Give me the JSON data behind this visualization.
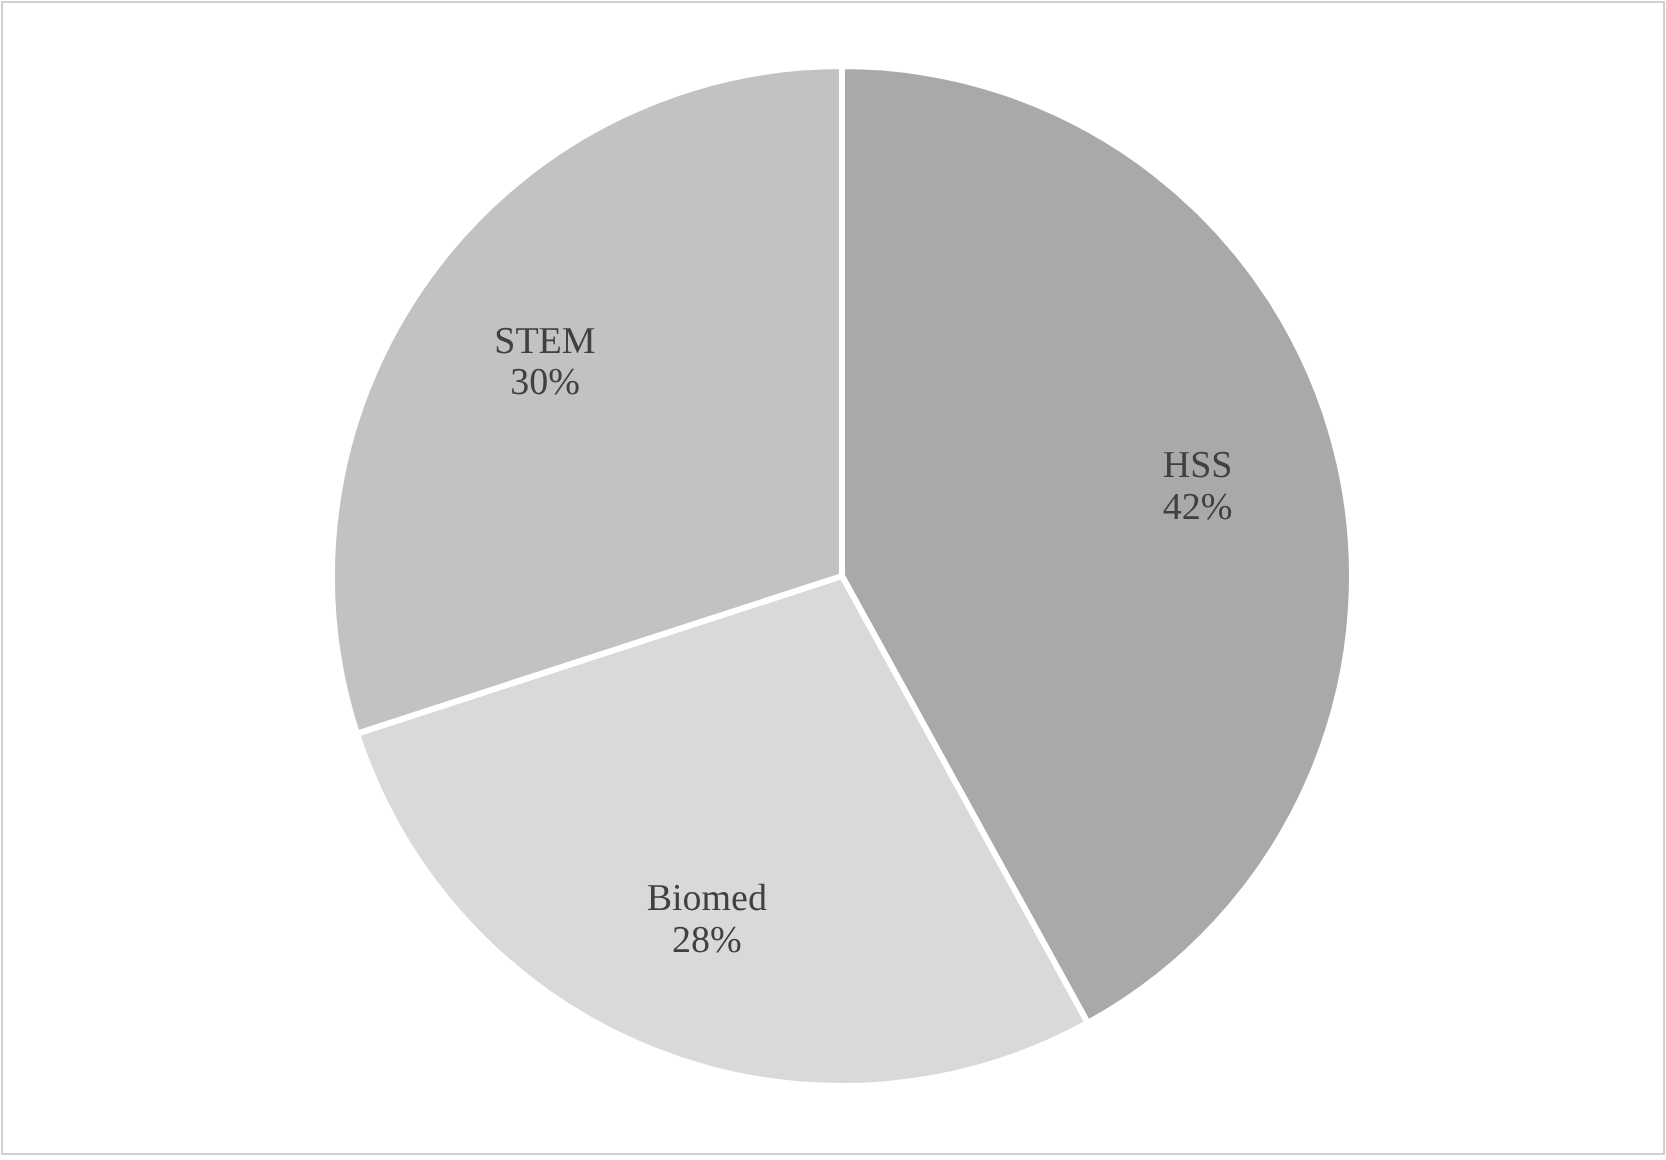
{
  "chart_data": {
    "type": "pie",
    "categories": [
      "HSS",
      "Biomed",
      "STEM"
    ],
    "values": [
      42,
      28,
      30
    ],
    "value_labels": [
      "42%",
      "28%",
      "30%"
    ],
    "colors": [
      "#a9a9a9",
      "#d9d9d9",
      "#c2c2c2"
    ],
    "legend": false
  }
}
